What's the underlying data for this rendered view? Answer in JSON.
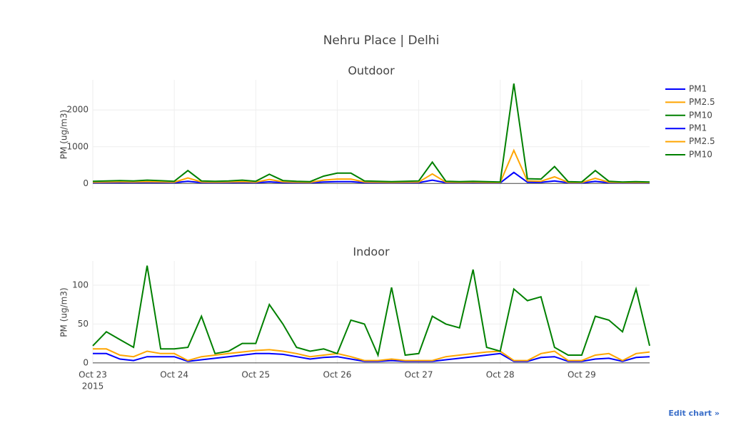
{
  "title": "Nehru Place | Delhi",
  "edit_link": "Edit chart »",
  "chart_data": [
    {
      "type": "line",
      "title": "Outdoor",
      "y_label": "PM (ug/m3)",
      "grid": true,
      "x": [
        "2015-10-23T00:00",
        "2015-10-23T04:00",
        "2015-10-23T08:00",
        "2015-10-23T12:00",
        "2015-10-23T16:00",
        "2015-10-23T20:00",
        "2015-10-24T00:00",
        "2015-10-24T04:00",
        "2015-10-24T08:00",
        "2015-10-24T12:00",
        "2015-10-24T16:00",
        "2015-10-24T20:00",
        "2015-10-25T00:00",
        "2015-10-25T04:00",
        "2015-10-25T08:00",
        "2015-10-25T12:00",
        "2015-10-25T16:00",
        "2015-10-25T20:00",
        "2015-10-26T00:00",
        "2015-10-26T04:00",
        "2015-10-26T08:00",
        "2015-10-26T12:00",
        "2015-10-26T16:00",
        "2015-10-26T20:00",
        "2015-10-27T00:00",
        "2015-10-27T04:00",
        "2015-10-27T08:00",
        "2015-10-27T12:00",
        "2015-10-27T16:00",
        "2015-10-27T20:00",
        "2015-10-28T00:00",
        "2015-10-28T04:00",
        "2015-10-28T08:00",
        "2015-10-28T12:00",
        "2015-10-28T16:00",
        "2015-10-28T20:00",
        "2015-10-29T00:00",
        "2015-10-29T04:00",
        "2015-10-29T08:00",
        "2015-10-29T12:00",
        "2015-10-29T16:00",
        "2015-10-29T20:00"
      ],
      "xlim": [
        "2015-10-23T00:00",
        "2015-10-29T20:00"
      ],
      "xticks": [
        {
          "value": "2015-10-23",
          "label": "Oct 23"
        },
        {
          "value": "2015-10-24",
          "label": "Oct 24"
        },
        {
          "value": "2015-10-25",
          "label": "Oct 25"
        },
        {
          "value": "2015-10-26",
          "label": "Oct 26"
        },
        {
          "value": "2015-10-27",
          "label": "Oct 27"
        },
        {
          "value": "2015-10-28",
          "label": "Oct 28"
        },
        {
          "value": "2015-10-29",
          "label": "Oct 29"
        }
      ],
      "ylim": [
        -150,
        2820
      ],
      "yticks": [
        0,
        1000,
        2000
      ],
      "series": [
        {
          "name": "PM1",
          "color": "#0000ff",
          "values": [
            20,
            22,
            25,
            22,
            28,
            24,
            20,
            60,
            22,
            20,
            22,
            28,
            20,
            45,
            24,
            20,
            18,
            40,
            50,
            50,
            22,
            20,
            18,
            20,
            22,
            90,
            20,
            18,
            20,
            18,
            15,
            300,
            35,
            30,
            70,
            18,
            15,
            55,
            20,
            15,
            18,
            15
          ]
        },
        {
          "name": "PM2.5",
          "color": "#ffa500",
          "values": [
            35,
            40,
            45,
            40,
            50,
            42,
            35,
            150,
            40,
            35,
            40,
            50,
            35,
            110,
            45,
            35,
            30,
            90,
            120,
            120,
            40,
            35,
            30,
            35,
            40,
            260,
            35,
            30,
            35,
            30,
            25,
            900,
            70,
            60,
            180,
            30,
            25,
            140,
            35,
            25,
            30,
            25
          ]
        },
        {
          "name": "PM10",
          "color": "#008000",
          "values": [
            60,
            70,
            80,
            70,
            90,
            75,
            60,
            350,
            70,
            60,
            70,
            90,
            60,
            250,
            80,
            60,
            50,
            200,
            280,
            280,
            70,
            60,
            50,
            60,
            70,
            580,
            60,
            50,
            60,
            50,
            40,
            2720,
            130,
            120,
            460,
            50,
            40,
            350,
            60,
            40,
            50,
            40
          ]
        }
      ]
    },
    {
      "type": "line",
      "title": "Indoor",
      "y_label": "PM (ug/m3)",
      "grid": true,
      "x_year_label": "2015",
      "x": [
        "2015-10-23T00:00",
        "2015-10-23T04:00",
        "2015-10-23T08:00",
        "2015-10-23T12:00",
        "2015-10-23T16:00",
        "2015-10-23T20:00",
        "2015-10-24T00:00",
        "2015-10-24T04:00",
        "2015-10-24T08:00",
        "2015-10-24T12:00",
        "2015-10-24T16:00",
        "2015-10-24T20:00",
        "2015-10-25T00:00",
        "2015-10-25T04:00",
        "2015-10-25T08:00",
        "2015-10-25T12:00",
        "2015-10-25T16:00",
        "2015-10-25T20:00",
        "2015-10-26T00:00",
        "2015-10-26T04:00",
        "2015-10-26T08:00",
        "2015-10-26T12:00",
        "2015-10-26T16:00",
        "2015-10-26T20:00",
        "2015-10-27T00:00",
        "2015-10-27T04:00",
        "2015-10-27T08:00",
        "2015-10-27T12:00",
        "2015-10-27T16:00",
        "2015-10-27T20:00",
        "2015-10-28T00:00",
        "2015-10-28T04:00",
        "2015-10-28T08:00",
        "2015-10-28T12:00",
        "2015-10-28T16:00",
        "2015-10-28T20:00",
        "2015-10-29T00:00",
        "2015-10-29T04:00",
        "2015-10-29T08:00",
        "2015-10-29T12:00",
        "2015-10-29T16:00",
        "2015-10-29T20:00"
      ],
      "xlim": [
        "2015-10-23T00:00",
        "2015-10-29T20:00"
      ],
      "xticks": [
        {
          "value": "2015-10-23",
          "label": "Oct 23"
        },
        {
          "value": "2015-10-24",
          "label": "Oct 24"
        },
        {
          "value": "2015-10-25",
          "label": "Oct 25"
        },
        {
          "value": "2015-10-26",
          "label": "Oct 26"
        },
        {
          "value": "2015-10-27",
          "label": "Oct 27"
        },
        {
          "value": "2015-10-28",
          "label": "Oct 28"
        },
        {
          "value": "2015-10-29",
          "label": "Oct 29"
        }
      ],
      "ylim": [
        -1,
        131
      ],
      "yticks": [
        0,
        50,
        100
      ],
      "series": [
        {
          "name": "PM1",
          "color": "#0000ff",
          "values": [
            12,
            12,
            5,
            3,
            8,
            8,
            8,
            2,
            4,
            6,
            8,
            10,
            12,
            12,
            11,
            8,
            5,
            7,
            8,
            5,
            2,
            2,
            3,
            2,
            2,
            2,
            4,
            6,
            8,
            10,
            12,
            2,
            2,
            7,
            8,
            2,
            2,
            5,
            6,
            2,
            7,
            8
          ]
        },
        {
          "name": "PM2.5",
          "color": "#ffa500",
          "values": [
            18,
            18,
            10,
            8,
            15,
            12,
            12,
            3,
            8,
            10,
            12,
            14,
            16,
            17,
            15,
            12,
            8,
            10,
            12,
            8,
            3,
            3,
            5,
            3,
            3,
            3,
            8,
            10,
            12,
            14,
            15,
            3,
            3,
            12,
            15,
            3,
            3,
            10,
            12,
            3,
            12,
            14
          ]
        },
        {
          "name": "PM10",
          "color": "#008000",
          "values": [
            22,
            40,
            30,
            20,
            125,
            18,
            18,
            20,
            60,
            12,
            15,
            25,
            25,
            75,
            50,
            20,
            15,
            18,
            12,
            55,
            50,
            10,
            97,
            10,
            12,
            60,
            50,
            45,
            120,
            20,
            15,
            95,
            80,
            85,
            20,
            10,
            10,
            60,
            55,
            40,
            95,
            22
          ]
        }
      ]
    }
  ]
}
